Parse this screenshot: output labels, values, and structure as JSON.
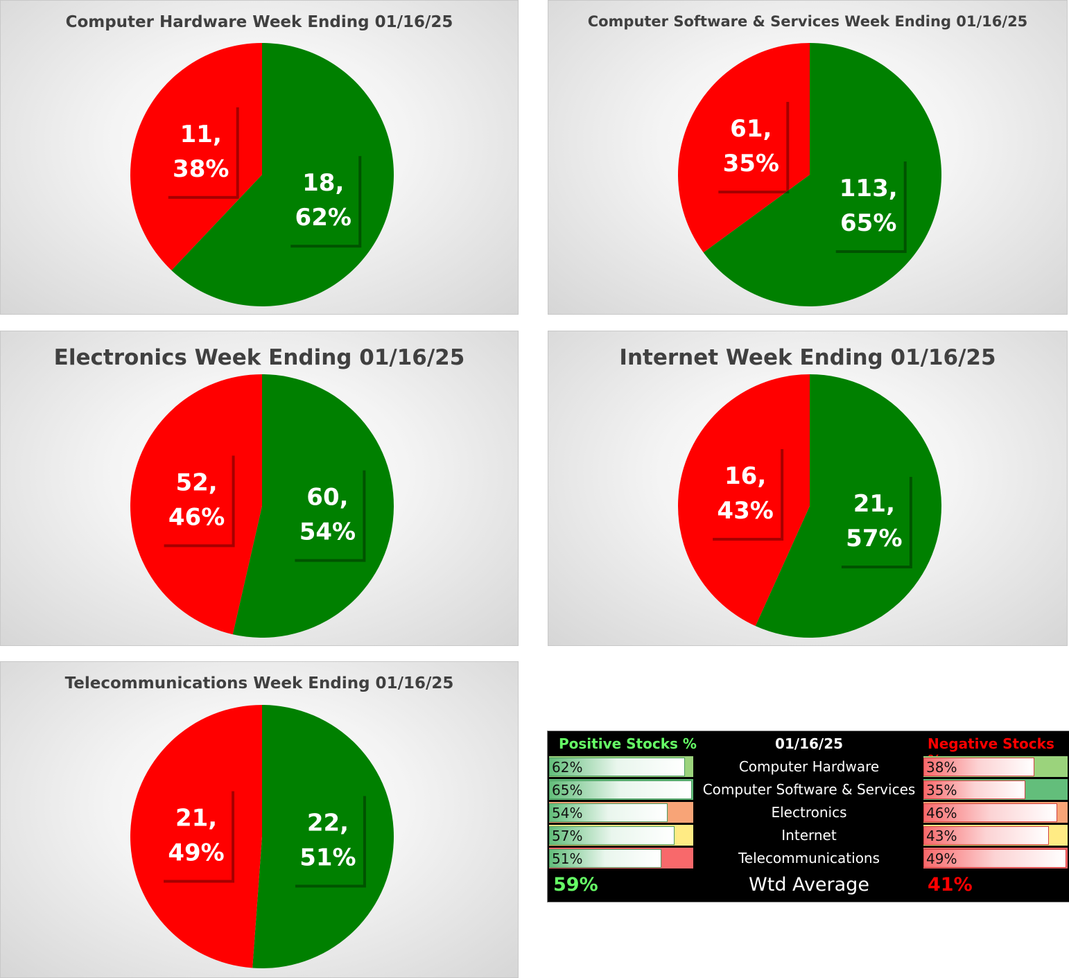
{
  "chart_data": [
    {
      "type": "pie",
      "title": "Computer Hardware Week Ending 01/16/25",
      "slices": [
        {
          "name": "Positive",
          "value": 18,
          "percent": "62%",
          "color": "#008000"
        },
        {
          "name": "Negative",
          "value": 11,
          "percent": "38%",
          "color": "#ff0000"
        }
      ],
      "data_labels": [
        "18,",
        "62%",
        "11,",
        "38%"
      ]
    },
    {
      "type": "pie",
      "title": "Computer Software & Services Week Ending 01/16/25",
      "slices": [
        {
          "name": "Positive",
          "value": 113,
          "percent": "65%",
          "color": "#008000"
        },
        {
          "name": "Negative",
          "value": 61,
          "percent": "35%",
          "color": "#ff0000"
        }
      ],
      "data_labels": [
        "113,",
        "65%",
        "61,",
        "35%"
      ]
    },
    {
      "type": "pie",
      "title": "Electronics Week Ending 01/16/25",
      "slices": [
        {
          "name": "Positive",
          "value": 60,
          "percent": "54%",
          "color": "#008000"
        },
        {
          "name": "Negative",
          "value": 52,
          "percent": "46%",
          "color": "#ff0000"
        }
      ],
      "data_labels": [
        "60,",
        "54%",
        "52,",
        "46%"
      ]
    },
    {
      "type": "pie",
      "title": "Internet Week Ending 01/16/25",
      "slices": [
        {
          "name": "Positive",
          "value": 21,
          "percent": "57%",
          "color": "#008000"
        },
        {
          "name": "Negative",
          "value": 16,
          "percent": "43%",
          "color": "#ff0000"
        }
      ],
      "data_labels": [
        "21,",
        "57%",
        "16,",
        "43%"
      ]
    },
    {
      "type": "pie",
      "title": "Telecommunications Week Ending 01/16/25",
      "slices": [
        {
          "name": "Positive",
          "value": 22,
          "percent": "51%",
          "color": "#008000"
        },
        {
          "name": "Negative",
          "value": 21,
          "percent": "49%",
          "color": "#ff0000"
        }
      ],
      "data_labels": [
        "22,",
        "51%",
        "21,",
        "49%"
      ]
    }
  ],
  "summary": {
    "positive_header": "Positive Stocks %",
    "date_header": "01/16/25",
    "negative_header": "Negative Stocks %",
    "rows": [
      {
        "category": "Computer Hardware",
        "positive": "62%",
        "negative": "38%",
        "pos_value": 0.62,
        "neg_value": 0.38,
        "pos_rank_color": "#9bd37c",
        "neg_rank_color": "#9bd37c"
      },
      {
        "category": "Computer Software & Services",
        "positive": "65%",
        "negative": "35%",
        "pos_value": 0.65,
        "neg_value": 0.35,
        "pos_rank_color": "#63be7b",
        "neg_rank_color": "#63be7b"
      },
      {
        "category": "Electronics",
        "positive": "54%",
        "negative": "46%",
        "pos_value": 0.54,
        "neg_value": 0.46,
        "pos_rank_color": "#f8a477",
        "neg_rank_color": "#f8a477"
      },
      {
        "category": "Internet",
        "positive": "57%",
        "negative": "43%",
        "pos_value": 0.57,
        "neg_value": 0.43,
        "pos_rank_color": "#ffeb84",
        "neg_rank_color": "#ffeb84"
      },
      {
        "category": "Telecommunications",
        "positive": "51%",
        "negative": "49%",
        "pos_value": 0.51,
        "neg_value": 0.49,
        "pos_rank_color": "#f8696b",
        "neg_rank_color": "#f8696b"
      }
    ],
    "avg_label": "Wtd Average",
    "avg_positive": "59%",
    "avg_negative": "41%",
    "colors": {
      "positive_header": "#66ff66",
      "negative_header": "#ff0000",
      "avg_positive": "#66ff66",
      "avg_negative": "#ff0000"
    }
  }
}
